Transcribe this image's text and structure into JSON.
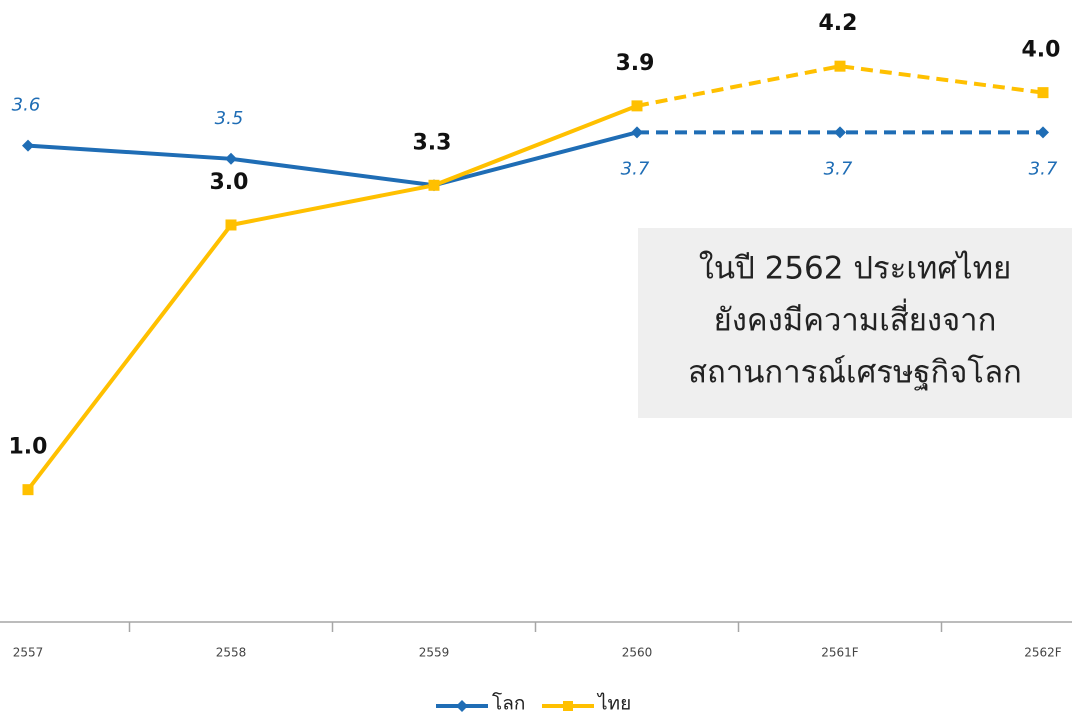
{
  "chart_data": {
    "type": "line",
    "categories": [
      "2557",
      "2558",
      "2559",
      "2560",
      "2561F",
      "2562F"
    ],
    "series": [
      {
        "name": "โลก",
        "color": "#1f6db5",
        "values": [
          3.6,
          3.5,
          3.3,
          3.7,
          3.7,
          3.7
        ],
        "marker": "diamond",
        "dashed_from": "2560"
      },
      {
        "name": "ไทย",
        "color": "#ffc000",
        "values": [
          1.0,
          3.0,
          3.3,
          3.9,
          4.2,
          4.0
        ],
        "value_labels": [
          "1.0",
          "3.0",
          "3.3",
          "3.9",
          "4.2",
          "4.0"
        ],
        "marker": "square",
        "dashed_from": "2560"
      }
    ],
    "ylim": [
      0,
      4.7
    ],
    "annotation": [
      "ในปี 2562 ประเทศไทย",
      "ยังคงมีความเสี่ยงจาก",
      "สถานการณ์เศรษฐกิจโลก"
    ],
    "legend": "bottom"
  }
}
